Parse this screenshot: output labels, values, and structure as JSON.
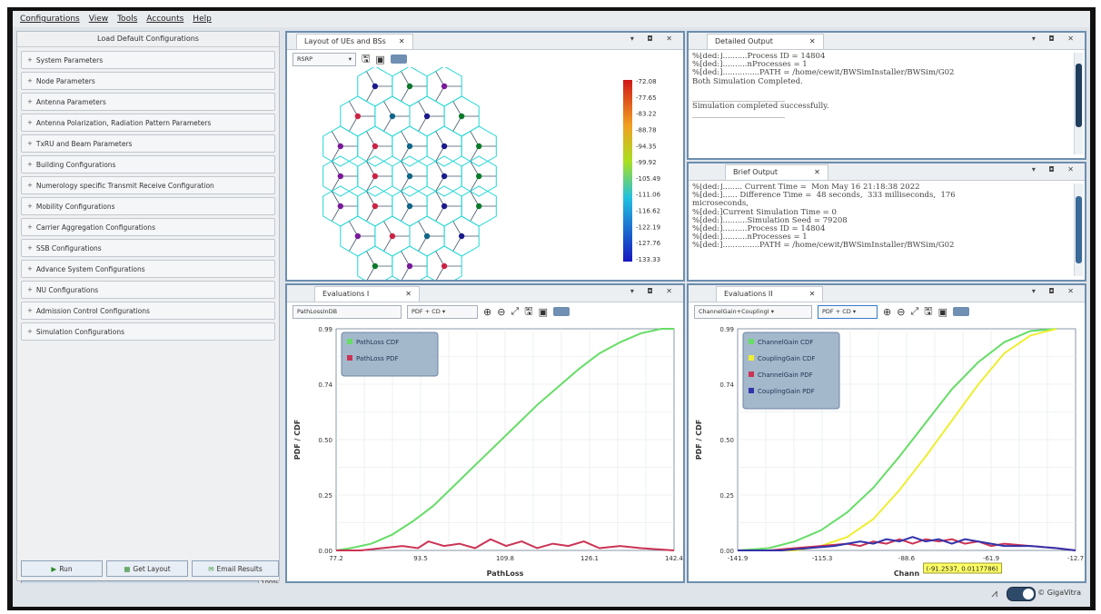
{
  "menu": [
    "Configurations",
    "View",
    "Tools",
    "Accounts",
    "Help"
  ],
  "left_panel": {
    "load_default": "Load Default Configurations",
    "items": [
      "System Parameters",
      "Node Parameters",
      "Antenna Parameters",
      "Antenna Polarization, Radiation Pattern Parameters",
      "TxRU and Beam Parameters",
      "Building Configurations",
      "Numerology specific Transmit Receive Configuration",
      "Mobility Configurations",
      "Carrier Aggregation Configurations",
      "SSB Configurations",
      "Advance System Configurations",
      "NU Configurations",
      "Admission Control Configurations",
      "Simulation Configurations"
    ],
    "run_label": "Run",
    "get_layout_label": "Get Layout",
    "email_results_label": "Email Results",
    "progress_value": 1.0,
    "progress_text": "100%"
  },
  "layout_panel": {
    "tab": "Layout of UEs and BSs",
    "combo": "RSRP",
    "colorbar_labels": [
      "-72.08",
      "-77.65",
      "-83.22",
      "-88.78",
      "-94.35",
      "-99.92",
      "-105.49",
      "-111.06",
      "-116.62",
      "-122.19",
      "-127.76",
      "-133.33"
    ]
  },
  "detailed_output": {
    "tab": "Detailed Output",
    "lines": [
      "%[ded:]..........Process ID = 14804",
      "%[ded:]..........nProcesses = 1",
      "%[ded:]...............PATH = /home/cewit/BWSimInstaller/BWSim/G02",
      "Both Simulation Completed.",
      "",
      "________________________",
      "Simulation completed successfully.",
      "________________________"
    ]
  },
  "brief_output": {
    "tab": "Brief Output",
    "lines": [
      "%[ded:]........ Current Time =  Mon May 16 21:18:38 2022",
      "%[ded:]...... Difference Time =  48 seconds,  333 milliseconds,  176",
      "microseconds,",
      "%[ded:]Current Simulation Time = 0",
      "%[ded:]..........Simulation Seed = 79208",
      "%[ded:]..........Process ID = 14804",
      "%[ded:]..........nProcesses = 1",
      "%[ded:]...............PATH = /home/cewit/BWSimInstaller/BWSim/G02"
    ]
  },
  "eval1": {
    "tab": "Evaluations I",
    "combo1": "PathLossInDB",
    "combo2": "PDF + CD"
  },
  "eval2": {
    "tab": "Evaluations II",
    "combo1": "ChannelGain+CouplingI",
    "combo2": "PDF + CD",
    "tooltip": "(-91.2537, 0.0117786)"
  },
  "chart_data": [
    {
      "type": "line",
      "title": "",
      "xlabel": "PathLoss",
      "ylabel": "PDF / CDF",
      "x_ticks": [
        "77.2",
        "93.5",
        "109.8",
        "126.1",
        "142.4"
      ],
      "y_ticks": [
        "0.00",
        "0.25",
        "0.50",
        "0.74",
        "0.99"
      ],
      "xlim": [
        77.2,
        142.4
      ],
      "ylim": [
        0,
        0.99
      ],
      "grid": true,
      "legend_position": "top-left",
      "series": [
        {
          "name": "PathLoss CDF",
          "color": "#66dd66",
          "x": [
            77.2,
            80,
            84,
            88,
            92,
            96,
            100,
            104,
            108,
            112,
            116,
            120,
            124,
            128,
            132,
            136,
            140,
            142.4
          ],
          "values": [
            0.0,
            0.01,
            0.03,
            0.07,
            0.13,
            0.2,
            0.29,
            0.38,
            0.47,
            0.56,
            0.65,
            0.73,
            0.81,
            0.88,
            0.93,
            0.97,
            0.99,
            0.99
          ]
        },
        {
          "name": "PathLoss PDF",
          "color": "#cc3355",
          "x": [
            77.2,
            82,
            86,
            90,
            93,
            95,
            98,
            101,
            104,
            107,
            110,
            113,
            116,
            119,
            122,
            125,
            128,
            132,
            136,
            142.4
          ],
          "values": [
            0.0,
            0.0,
            0.01,
            0.02,
            0.01,
            0.04,
            0.02,
            0.03,
            0.01,
            0.05,
            0.02,
            0.04,
            0.01,
            0.03,
            0.02,
            0.04,
            0.01,
            0.02,
            0.01,
            0.0
          ]
        }
      ]
    },
    {
      "type": "line",
      "title": "",
      "xlabel": "Chann",
      "ylabel": "PDF / CDF",
      "x_ticks": [
        "-141.9",
        "-115.3",
        "-88.6",
        "-61.9",
        "-12.7"
      ],
      "y_ticks": [
        "0.00",
        "0.25",
        "0.50",
        "0.74",
        "0.99"
      ],
      "xlim": [
        -141.9,
        -12.7
      ],
      "ylim": [
        0,
        0.99
      ],
      "grid": true,
      "legend_position": "top-left",
      "series": [
        {
          "name": "ChannelGain CDF",
          "color": "#66dd66",
          "x": [
            -141.9,
            -130,
            -120,
            -110,
            -100,
            -90,
            -80,
            -70,
            -60,
            -50,
            -40,
            -30,
            -20
          ],
          "values": [
            0.0,
            0.01,
            0.04,
            0.09,
            0.17,
            0.28,
            0.42,
            0.57,
            0.72,
            0.84,
            0.93,
            0.98,
            0.99
          ]
        },
        {
          "name": "CouplingGain CDF",
          "color": "#eeee33",
          "x": [
            -141.9,
            -120,
            -110,
            -100,
            -90,
            -80,
            -70,
            -60,
            -50,
            -40,
            -30,
            -20
          ],
          "values": [
            0.0,
            0.0,
            0.02,
            0.06,
            0.14,
            0.27,
            0.42,
            0.58,
            0.74,
            0.88,
            0.96,
            0.99
          ]
        },
        {
          "name": "ChannelGain PDF",
          "color": "#cc3355",
          "x": [
            -141.9,
            -130,
            -120,
            -110,
            -100,
            -95,
            -90,
            -85,
            -80,
            -75,
            -70,
            -65,
            -60,
            -55,
            -50,
            -45,
            -40,
            -30,
            -20,
            -12.7
          ],
          "values": [
            0.0,
            0.0,
            0.01,
            0.02,
            0.03,
            0.02,
            0.04,
            0.03,
            0.05,
            0.03,
            0.05,
            0.04,
            0.05,
            0.03,
            0.04,
            0.02,
            0.03,
            0.02,
            0.01,
            0.0
          ]
        },
        {
          "name": "CouplingGain PDF",
          "color": "#3333aa",
          "x": [
            -141.9,
            -125,
            -115,
            -105,
            -100,
            -95,
            -90,
            -85,
            -80,
            -75,
            -70,
            -65,
            -60,
            -55,
            -50,
            -45,
            -40,
            -30,
            -20,
            -12.7
          ],
          "values": [
            0.0,
            0.0,
            0.01,
            0.02,
            0.03,
            0.04,
            0.03,
            0.05,
            0.04,
            0.06,
            0.04,
            0.05,
            0.03,
            0.05,
            0.04,
            0.03,
            0.02,
            0.02,
            0.01,
            0.0
          ]
        }
      ]
    }
  ],
  "footer": {
    "brand": "© GigaVitra"
  },
  "icons": {
    "close": "close-icon",
    "save": "save-icon",
    "zoom_in": "zoom-in-icon",
    "zoom_out": "zoom-out-icon",
    "fit": "fit-icon"
  }
}
